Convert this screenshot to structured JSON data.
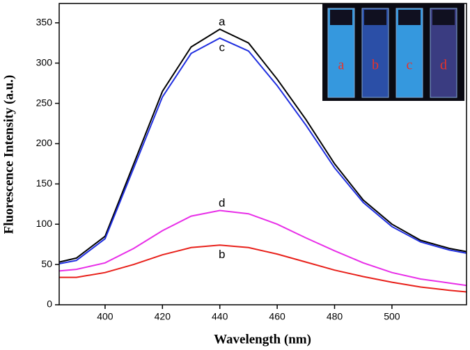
{
  "chart_data": {
    "type": "line",
    "x_label": "Wavelength (nm)",
    "y_label": "Fluorescence Intensity (a.u.)",
    "x": [
      384,
      390,
      400,
      410,
      420,
      430,
      440,
      450,
      460,
      470,
      480,
      490,
      500,
      510,
      520,
      526
    ],
    "series": [
      {
        "name": "a",
        "color": "#000000",
        "values": [
          53,
          58,
          85,
          175,
          265,
          320,
          342,
          325,
          280,
          230,
          175,
          130,
          100,
          80,
          70,
          66
        ]
      },
      {
        "name": "b",
        "color": "#e8201a",
        "values": [
          34,
          34,
          40,
          50,
          62,
          71,
          74,
          71,
          63,
          53,
          43,
          35,
          28,
          22,
          18,
          16
        ]
      },
      {
        "name": "c",
        "color": "#1f2ee0",
        "values": [
          51,
          55,
          82,
          170,
          258,
          312,
          331,
          315,
          272,
          223,
          170,
          127,
          97,
          78,
          68,
          64
        ]
      },
      {
        "name": "d",
        "color": "#e82ee8",
        "values": [
          42,
          44,
          52,
          70,
          92,
          110,
          117,
          113,
          100,
          83,
          67,
          52,
          40,
          32,
          27,
          24
        ]
      }
    ],
    "xlim": [
      384,
      526
    ],
    "xticks": [
      400,
      420,
      440,
      460,
      480,
      500
    ],
    "ylim": [
      0,
      374
    ],
    "yticks": [
      0,
      50,
      100,
      150,
      200,
      250,
      300,
      350
    ]
  }
}
